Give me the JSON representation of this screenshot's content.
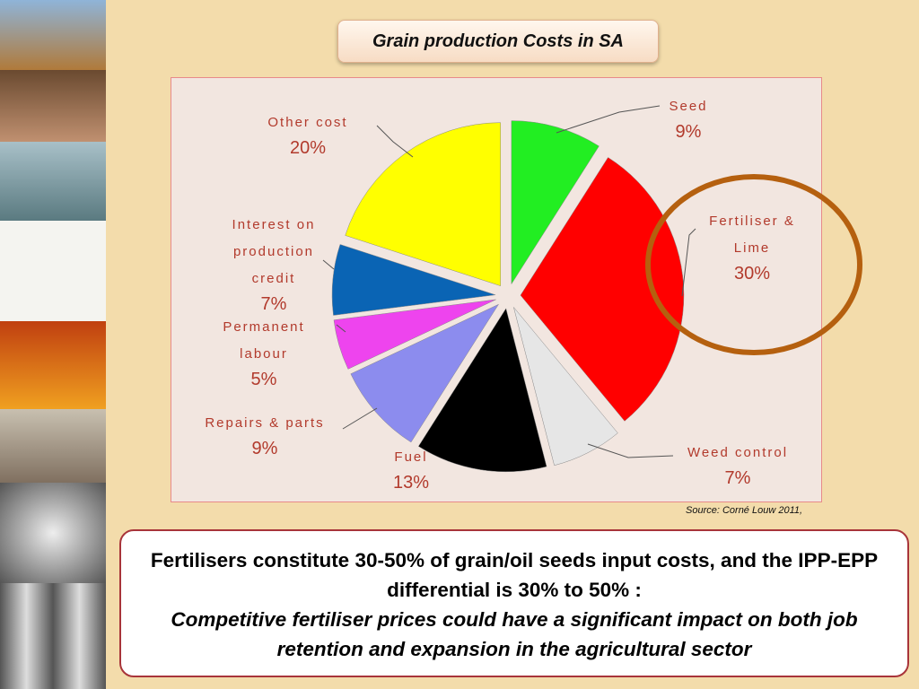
{
  "chart_data": {
    "type": "pie",
    "title": "Grain production Costs in SA",
    "categories": [
      "Seed",
      "Fertiliser & Lime",
      "Weed control",
      "Fuel",
      "Repairs & parts",
      "Permanent labour",
      "Interest on production credit",
      "Other cost"
    ],
    "values": [
      9,
      30,
      7,
      13,
      9,
      5,
      7,
      20
    ],
    "value_labels": [
      "9%",
      "30%",
      "7%",
      "13%",
      "9%",
      "5%",
      "7%",
      "20%"
    ],
    "colors": [
      "#22ee22",
      "#ff0000",
      "#e6e6e6",
      "#000000",
      "#8c8cee",
      "#ee44ee",
      "#0a64b4",
      "#ffff00"
    ],
    "source": "Source: Corné Louw 2011,"
  },
  "callout": {
    "statement": "Fertilisers constitute 30-50% of grain/oil seeds input costs, and the IPP-EPP differential is 30% to 50% :",
    "emphasis": "Competitive fertiliser prices could have a significant impact on both job retention and expansion in the agricultural sector"
  }
}
